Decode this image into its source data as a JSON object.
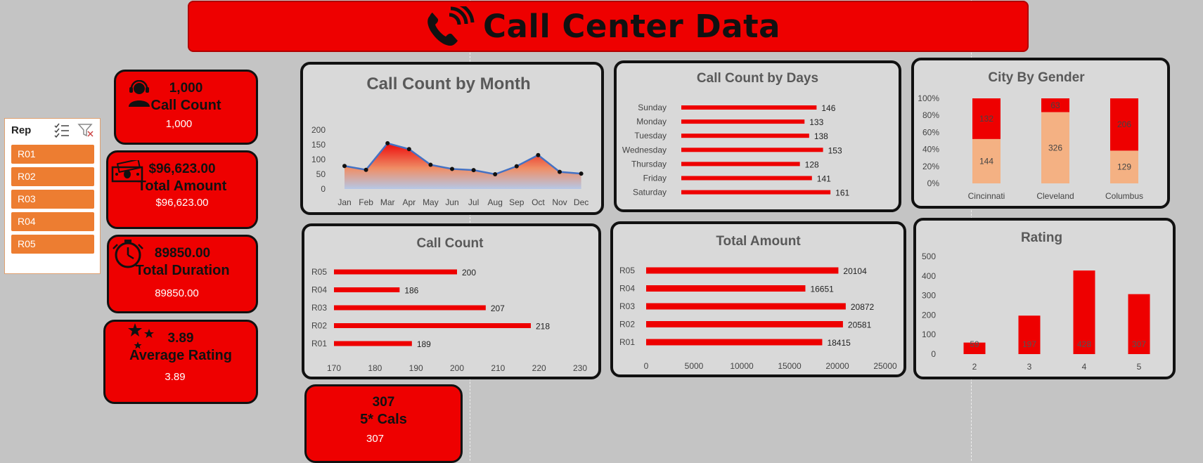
{
  "header": {
    "title": "Call Center Data",
    "icon": "phone-icon"
  },
  "slicer": {
    "title": "Rep",
    "items": [
      "R01",
      "R02",
      "R03",
      "R04",
      "R05"
    ]
  },
  "kpis": {
    "call_count": {
      "value": "1,000",
      "label": "Call Count",
      "sub": "1,000",
      "icon": "headset-agent-icon"
    },
    "total_amount": {
      "value": "$96,623.00",
      "label": "Total Amount",
      "sub": "$96,623.00",
      "icon": "money-icon"
    },
    "total_duration": {
      "value": "89850.00",
      "label": "Total Duration",
      "sub": "89850.00",
      "icon": "stopwatch-icon"
    },
    "avg_rating": {
      "value": "3.89",
      "label": "Average Rating",
      "sub": "3.89",
      "icon": "stars-icon"
    },
    "five_star": {
      "value": "307",
      "label": "5* Cals",
      "sub": "307"
    }
  },
  "colors": {
    "accent": "#ee0000",
    "card": "#d9d9d9",
    "slicer_item": "#ed7d31",
    "peach": "#f4b183",
    "line": "#4472c4"
  },
  "chart_data": [
    {
      "id": "month",
      "type": "area",
      "title": "Call Count by Month",
      "categories": [
        "Jan",
        "Feb",
        "Mar",
        "Apr",
        "May",
        "Jun",
        "Jul",
        "Aug",
        "Sep",
        "Oct",
        "Nov",
        "Dec"
      ],
      "values": [
        78,
        65,
        155,
        135,
        82,
        68,
        64,
        50,
        77,
        115,
        58,
        52
      ],
      "yticks": [
        "0",
        "50",
        "100",
        "150",
        "200"
      ],
      "ylim": [
        0,
        200
      ]
    },
    {
      "id": "days",
      "type": "bar",
      "title": "Call Count by Days",
      "categories": [
        "Sunday",
        "Monday",
        "Tuesday",
        "Wednesday",
        "Thursday",
        "Friday",
        "Saturday"
      ],
      "values": [
        146,
        133,
        138,
        153,
        128,
        141,
        161
      ],
      "labels": [
        "146",
        "133",
        "138",
        "153",
        "128",
        "141",
        "161"
      ],
      "xlim": [
        0,
        170
      ]
    },
    {
      "id": "gender",
      "type": "bar",
      "title": "City By Gender",
      "categories": [
        "Cincinnati",
        "Cleveland",
        "Columbus"
      ],
      "series": [
        {
          "values": [
            144,
            326,
            129
          ],
          "labels": [
            "144",
            "326",
            "129"
          ]
        },
        {
          "values": [
            132,
            63,
            206
          ],
          "labels": [
            "132",
            "63",
            "206"
          ]
        }
      ],
      "yticks": [
        "0%",
        "20%",
        "40%",
        "60%",
        "80%",
        "100%"
      ]
    },
    {
      "id": "rep_count",
      "type": "bar",
      "title": "Call Count",
      "categories": [
        "R05",
        "R04",
        "R03",
        "R02",
        "R01"
      ],
      "values": [
        200,
        186,
        207,
        218,
        189
      ],
      "labels": [
        "200",
        "186",
        "207",
        "218",
        "189"
      ],
      "xticks": [
        "170",
        "180",
        "190",
        "200",
        "210",
        "220",
        "230"
      ],
      "xlim": [
        170,
        230
      ]
    },
    {
      "id": "rep_amount",
      "type": "bar",
      "title": "Total Amount",
      "categories": [
        "R05",
        "R04",
        "R03",
        "R02",
        "R01"
      ],
      "values": [
        20104,
        16651,
        20872,
        20581,
        18415
      ],
      "labels": [
        "20104",
        "16651",
        "20872",
        "20581",
        "18415"
      ],
      "xticks": [
        "0",
        "5000",
        "10000",
        "15000",
        "20000",
        "25000"
      ],
      "xlim": [
        0,
        25000
      ]
    },
    {
      "id": "rating",
      "type": "bar",
      "title": "Rating",
      "categories": [
        "2",
        "3",
        "4",
        "5"
      ],
      "values": [
        59,
        197,
        428,
        307
      ],
      "labels": [
        "59",
        "197",
        "428",
        "307"
      ],
      "yticks": [
        "0",
        "100",
        "200",
        "300",
        "400",
        "500"
      ],
      "ylim": [
        0,
        500
      ]
    }
  ]
}
